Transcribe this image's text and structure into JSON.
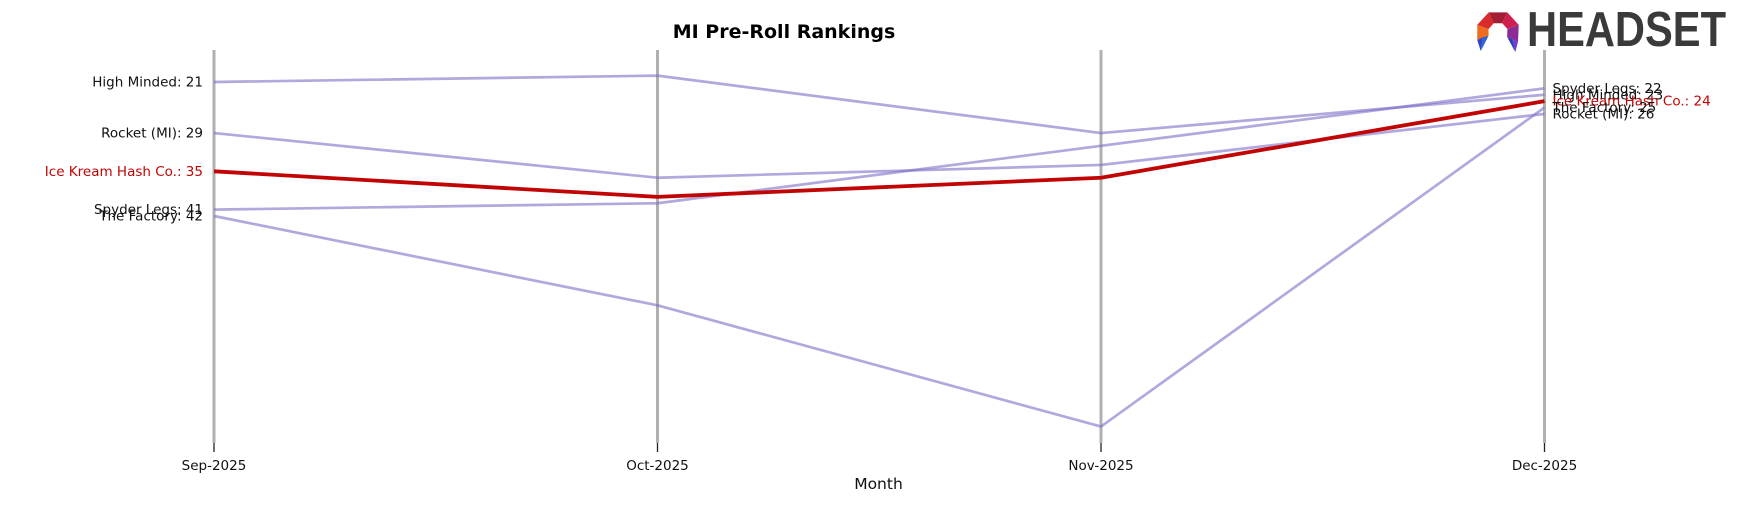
{
  "header": {
    "logo_text": "HEADSET"
  },
  "chart_data": {
    "type": "line",
    "title": "MI Pre-Roll Rankings",
    "xlabel": "Month",
    "categories": [
      "Sep-2025",
      "Oct-2025",
      "Nov-2025",
      "Dec-2025"
    ],
    "value_meaning": "sales rank (lower number = better rank); Oct and Nov values estimated from line positions, Sep and Dec values labeled on chart",
    "y_inverted": true,
    "ylim": [
      16,
      78
    ],
    "grid": false,
    "legend_position": "inline-labels",
    "series": [
      {
        "name": "High Minded",
        "color": "#7b6fc8",
        "highlight": false,
        "values": [
          21,
          20,
          29,
          23
        ],
        "label_start": "High Minded: 21",
        "label_end": "High Minded: 23"
      },
      {
        "name": "Rocket (MI)",
        "color": "#7b6fc8",
        "highlight": false,
        "values": [
          29,
          36,
          34,
          26
        ],
        "label_start": "Rocket (MI): 29",
        "label_end": "Rocket (MI): 26"
      },
      {
        "name": "Ice Kream Hash Co.",
        "color": "#c10505",
        "highlight": true,
        "values": [
          35,
          39,
          36,
          24
        ],
        "label_start": "Ice Kream Hash Co.: 35",
        "label_end": "Ice Kream Hash Co.: 24"
      },
      {
        "name": "Spyder Legs",
        "color": "#7b6fc8",
        "highlight": false,
        "values": [
          41,
          40,
          31,
          22
        ],
        "label_start": "Spyder Legs: 41",
        "label_end": "Spyder Legs: 22"
      },
      {
        "name": "The Factory",
        "color": "#7b6fc8",
        "highlight": false,
        "values": [
          42,
          56,
          75,
          25
        ],
        "label_start": "The Factory: 42",
        "label_end": "The Factory: 25"
      }
    ],
    "colors": {
      "highlight_line": "#c10505",
      "normal_line": "#7b6fc8",
      "axis_line": "#b0b0b0",
      "text": "#111111"
    }
  }
}
